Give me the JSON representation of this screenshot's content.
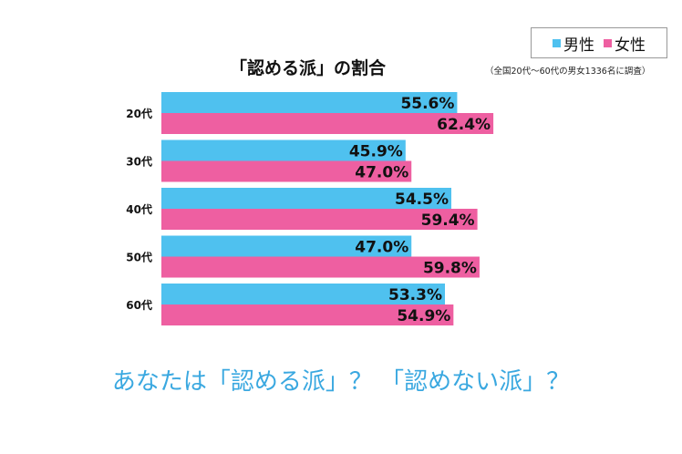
{
  "legend": {
    "male_label": "男性",
    "female_label": "女性"
  },
  "note": "（全国20代〜60代の男女1336名に調査）",
  "tagline": "あなたは「認める派」？ 「認めない派」？",
  "colors": {
    "male": "#4fc1ef",
    "female": "#ee5fa1"
  },
  "chart_data": {
    "type": "bar",
    "orientation": "horizontal",
    "title": "「認める派」の割合",
    "categories": [
      "20代",
      "30代",
      "40代",
      "50代",
      "60代"
    ],
    "series": [
      {
        "name": "男性",
        "values": [
          55.6,
          45.9,
          54.5,
          47.0,
          53.3
        ]
      },
      {
        "name": "女性",
        "values": [
          62.4,
          47.0,
          59.4,
          59.8,
          54.9
        ]
      }
    ],
    "value_suffix": "%",
    "xlim": [
      0,
      100
    ],
    "grid": false,
    "legend": "top-right"
  }
}
